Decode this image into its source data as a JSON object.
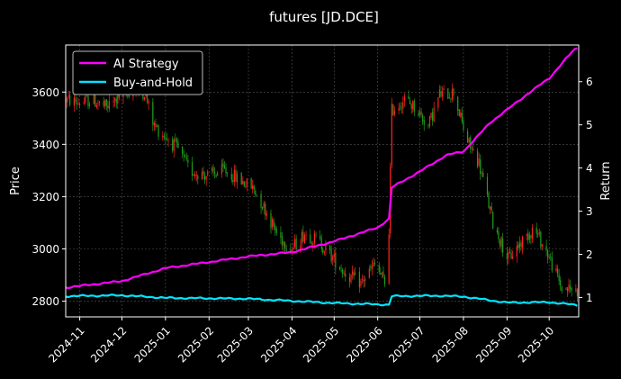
{
  "chart_data": {
    "type": "line",
    "title": "futures [JD.DCE]",
    "xlabel": "",
    "ylabel_left": "Price",
    "ylabel_right": "Return",
    "x_ticks": [
      "2024-11",
      "2024-12",
      "2025-01",
      "2025-02",
      "2025-03",
      "2025-04",
      "2025-05",
      "2025-06",
      "2025-07",
      "2025-08",
      "2025-09",
      "2025-10"
    ],
    "x_range": [
      "2024-10-22",
      "2025-10-22"
    ],
    "ylim_left": [
      2740,
      3780
    ],
    "ylim_right": [
      0.55,
      6.85
    ],
    "y_ticks_left": [
      2800,
      3000,
      3200,
      3400,
      3600
    ],
    "y_ticks_right": [
      1,
      2,
      3,
      4,
      5,
      6
    ],
    "grid": true,
    "legend_position": "top-left",
    "colors": {
      "up": "#ff2222",
      "down": "#1ea01e",
      "strategy": "#ff00ff",
      "buyhold": "#00e5ff"
    },
    "price_anchors": [
      [
        "2024-10-22",
        3570
      ],
      [
        "2024-11-01",
        3560
      ],
      [
        "2024-11-10",
        3570
      ],
      [
        "2024-11-20",
        3540
      ],
      [
        "2024-12-01",
        3590
      ],
      [
        "2024-12-10",
        3610
      ],
      [
        "2024-12-17",
        3600
      ],
      [
        "2024-12-24",
        3470
      ],
      [
        "2025-01-03",
        3420
      ],
      [
        "2025-01-10",
        3380
      ],
      [
        "2025-01-18",
        3300
      ],
      [
        "2025-02-01",
        3280
      ],
      [
        "2025-02-12",
        3300
      ],
      [
        "2025-02-24",
        3260
      ],
      [
        "2025-03-05",
        3230
      ],
      [
        "2025-03-13",
        3150
      ],
      [
        "2025-03-22",
        3050
      ],
      [
        "2025-04-01",
        3000
      ],
      [
        "2025-04-10",
        3060
      ],
      [
        "2025-04-20",
        3030
      ],
      [
        "2025-05-01",
        2960
      ],
      [
        "2025-05-10",
        2900
      ],
      [
        "2025-05-20",
        2870
      ],
      [
        "2025-05-30",
        2940
      ],
      [
        "2025-06-08",
        2850
      ],
      [
        "2025-06-11",
        3530
      ],
      [
        "2025-06-20",
        3570
      ],
      [
        "2025-06-28",
        3540
      ],
      [
        "2025-07-07",
        3470
      ],
      [
        "2025-07-15",
        3590
      ],
      [
        "2025-07-25",
        3600
      ],
      [
        "2025-08-03",
        3420
      ],
      [
        "2025-08-12",
        3330
      ],
      [
        "2025-08-22",
        3100
      ],
      [
        "2025-09-02",
        2960
      ],
      [
        "2025-09-10",
        3020
      ],
      [
        "2025-09-20",
        3080
      ],
      [
        "2025-09-30",
        2980
      ],
      [
        "2025-10-10",
        2850
      ],
      [
        "2025-10-22",
        2840
      ]
    ],
    "series": [
      {
        "name": "AI Strategy",
        "points": [
          [
            "2024-10-22",
            1.23
          ],
          [
            "2024-12-01",
            1.38
          ],
          [
            "2025-01-01",
            1.68
          ],
          [
            "2025-02-01",
            1.82
          ],
          [
            "2025-03-01",
            1.95
          ],
          [
            "2025-04-01",
            2.05
          ],
          [
            "2025-05-01",
            2.3
          ],
          [
            "2025-06-01",
            2.62
          ],
          [
            "2025-06-10",
            2.85
          ],
          [
            "2025-06-11",
            3.55
          ],
          [
            "2025-07-01",
            3.92
          ],
          [
            "2025-07-20",
            4.3
          ],
          [
            "2025-08-01",
            4.38
          ],
          [
            "2025-08-20",
            5.05
          ],
          [
            "2025-09-15",
            5.7
          ],
          [
            "2025-10-01",
            6.08
          ],
          [
            "2025-10-18",
            6.72
          ],
          [
            "2025-10-22",
            6.8
          ]
        ]
      },
      {
        "name": "Buy-and-Hold",
        "points": [
          [
            "2024-10-22",
            1.03
          ],
          [
            "2024-12-01",
            1.05
          ],
          [
            "2025-01-01",
            0.99
          ],
          [
            "2025-02-01",
            0.98
          ],
          [
            "2025-03-01",
            0.97
          ],
          [
            "2025-04-01",
            0.92
          ],
          [
            "2025-05-01",
            0.87
          ],
          [
            "2025-06-01",
            0.84
          ],
          [
            "2025-06-10",
            0.83
          ],
          [
            "2025-06-11",
            1.03
          ],
          [
            "2025-07-15",
            1.04
          ],
          [
            "2025-08-01",
            1.02
          ],
          [
            "2025-09-01",
            0.88
          ],
          [
            "2025-10-01",
            0.89
          ],
          [
            "2025-10-22",
            0.82
          ]
        ]
      }
    ]
  }
}
